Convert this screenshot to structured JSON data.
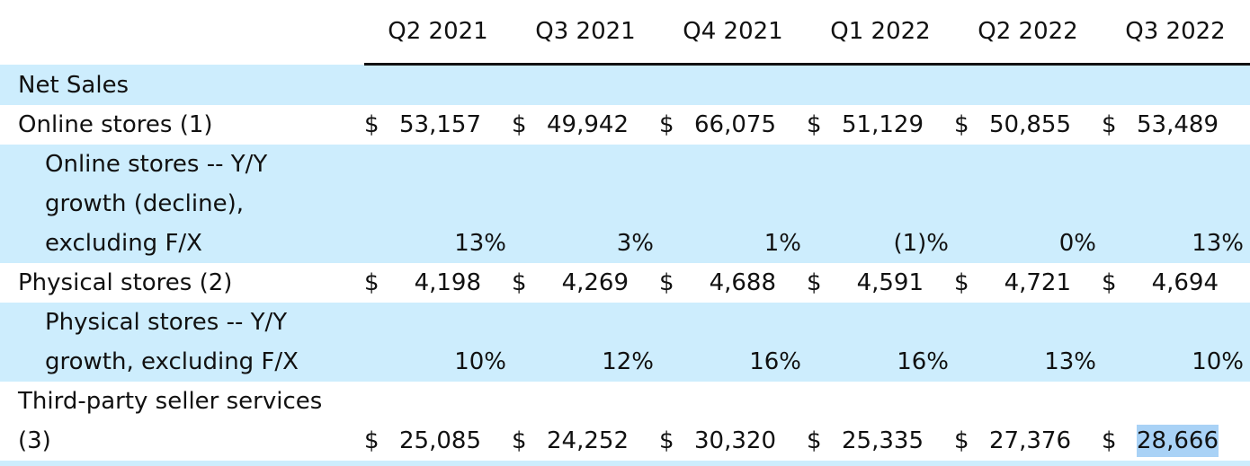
{
  "columns": [
    "Q2 2021",
    "Q3 2021",
    "Q4 2021",
    "Q1 2022",
    "Q2 2022",
    "Q3 2022"
  ],
  "rows": {
    "net_sales": {
      "label": "Net Sales"
    },
    "online_stores": {
      "label": "Online stores (1)",
      "currency": "$",
      "values": [
        "53,157",
        "49,942",
        "66,075",
        "51,129",
        "50,855",
        "53,489"
      ]
    },
    "online_growth": {
      "label_lines": [
        "Online stores -- Y/Y",
        "growth (decline),",
        "excluding F/X"
      ],
      "values": [
        "13%",
        "3%",
        "1%",
        "(1)%",
        "0%",
        "13%"
      ]
    },
    "physical_stores": {
      "label": "Physical stores (2)",
      "currency": "$",
      "values": [
        "4,198",
        "4,269",
        "4,688",
        "4,591",
        "4,721",
        "4,694"
      ]
    },
    "physical_growth": {
      "label_lines": [
        "Physical stores -- Y/Y",
        "growth, excluding F/X"
      ],
      "values": [
        "10%",
        "12%",
        "16%",
        "16%",
        "13%",
        "10%"
      ]
    },
    "third_party": {
      "label_lines": [
        "Third-party seller services",
        "(3)"
      ],
      "currency": "$",
      "values": [
        "25,085",
        "24,252",
        "30,320",
        "25,335",
        "27,376",
        "28,666"
      ]
    }
  },
  "colors": {
    "row_fill": "#cdedfd",
    "selection": "#a9d2f6"
  }
}
